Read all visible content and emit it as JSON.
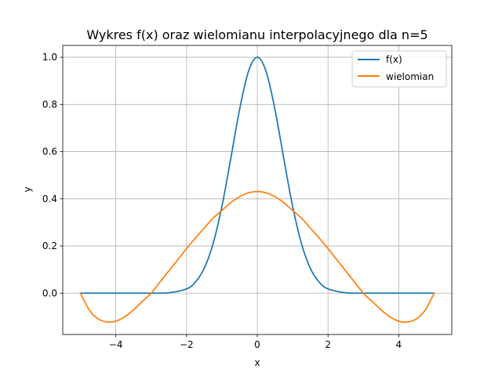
{
  "chart_data": {
    "type": "line",
    "title": "Wykres f(x) oraz wielomianu interpolacyjnego dla n=5",
    "xlabel": "x",
    "ylabel": "y",
    "xlim": [
      -5.5,
      5.5
    ],
    "ylim": [
      -0.175,
      1.05
    ],
    "xticks": [
      -4,
      -2,
      0,
      2,
      4
    ],
    "xtick_labels": [
      "−4",
      "−2",
      "0",
      "2",
      "4"
    ],
    "yticks": [
      0.0,
      0.2,
      0.4,
      0.6,
      0.8,
      1.0
    ],
    "ytick_labels": [
      "0.0",
      "0.2",
      "0.4",
      "0.6",
      "0.8",
      "1.0"
    ],
    "grid": true,
    "legend_position": "top-right",
    "series": [
      {
        "name": "f(x)",
        "color": "#1f77b4",
        "x": [
          -5,
          -4,
          -3,
          -2.5,
          -2,
          -1.75,
          -1.5,
          -1.25,
          -1,
          -0.75,
          -0.5,
          -0.25,
          0,
          0.25,
          0.5,
          0.75,
          1,
          1.25,
          1.5,
          1.75,
          2,
          2.5,
          3,
          4,
          5
        ],
        "y": [
          0.0,
          0.0,
          0.0001,
          0.0019,
          0.0183,
          0.0468,
          0.1054,
          0.2096,
          0.3679,
          0.5698,
          0.7788,
          0.9394,
          1.0,
          0.9394,
          0.7788,
          0.5698,
          0.3679,
          0.2096,
          0.1054,
          0.0468,
          0.0183,
          0.0019,
          0.0001,
          0.0,
          0.0
        ]
      },
      {
        "name": "wielomian",
        "color": "#ff7f0e",
        "x": [
          -5,
          -4.75,
          -4.5,
          -4.25,
          -4,
          -3.75,
          -3.5,
          -3.25,
          -3,
          -2.75,
          -2.5,
          -2.25,
          -2,
          -1.75,
          -1.5,
          -1.25,
          -1,
          -0.75,
          -0.5,
          -0.25,
          0,
          0.25,
          0.5,
          0.75,
          1,
          1.25,
          1.5,
          1.75,
          2,
          2.5,
          3,
          3.25,
          3.5,
          3.75,
          4,
          4.25,
          4.5,
          4.75,
          5
        ],
        "y": [
          0.0,
          -0.0712,
          -0.1088,
          -0.1218,
          -0.1185,
          -0.1002,
          -0.071,
          -0.0348,
          0.0,
          0.0476,
          0.0946,
          0.1415,
          0.189,
          0.2336,
          0.2762,
          0.3182,
          0.3504,
          0.3837,
          0.409,
          0.4252,
          0.431,
          0.4252,
          0.409,
          0.3837,
          0.3504,
          0.3182,
          0.2762,
          0.2336,
          0.189,
          0.0946,
          0.0,
          -0.0348,
          -0.071,
          -0.1002,
          -0.1185,
          -0.1218,
          -0.1088,
          -0.0712,
          0.0
        ]
      }
    ]
  }
}
